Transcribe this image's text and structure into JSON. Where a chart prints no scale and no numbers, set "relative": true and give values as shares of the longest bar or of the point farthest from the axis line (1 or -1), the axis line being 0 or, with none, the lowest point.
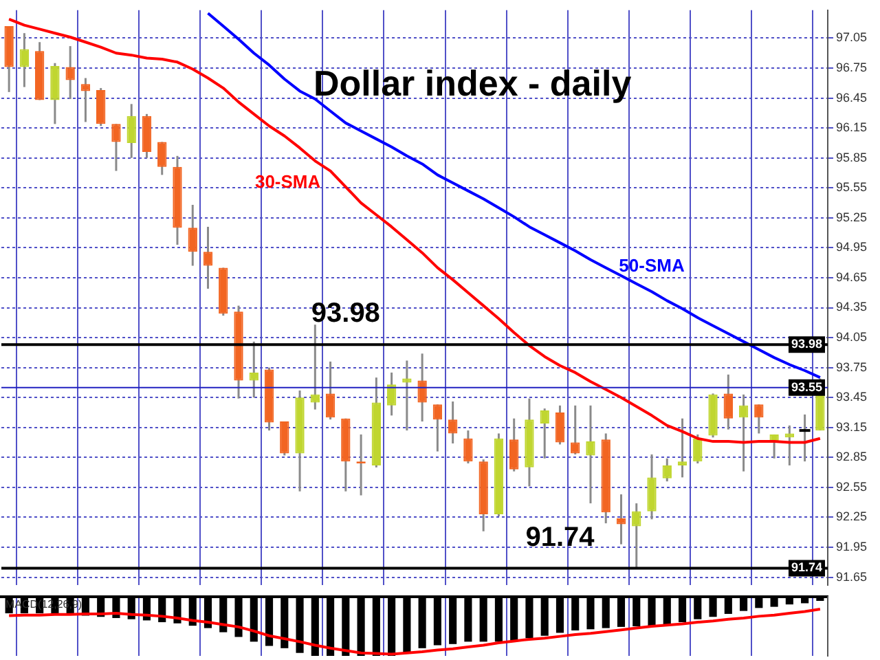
{
  "chart_data": [
    {
      "type": "candlestick",
      "title": "Dollar index - daily",
      "categories": [
        null,
        null,
        null,
        null,
        null,
        null,
        null,
        null,
        null,
        null,
        null,
        null,
        null,
        null,
        null,
        null,
        null,
        null,
        null,
        null,
        null,
        null,
        null,
        null,
        null,
        null,
        null,
        null,
        null,
        null,
        null,
        null,
        null,
        null,
        null,
        null,
        null,
        null,
        null,
        null,
        null,
        null,
        null,
        null,
        null,
        null,
        null,
        null,
        null,
        null,
        null,
        null,
        null,
        null
      ],
      "ohlc": [
        [
          97.17,
          97.17,
          96.51,
          96.76
        ],
        [
          96.76,
          97.1,
          96.56,
          96.94
        ],
        [
          96.92,
          97.01,
          96.43,
          96.43
        ],
        [
          96.43,
          96.8,
          96.19,
          96.77
        ],
        [
          96.76,
          96.97,
          96.44,
          96.63
        ],
        [
          96.59,
          96.65,
          96.21,
          96.52
        ],
        [
          96.53,
          96.55,
          96.17,
          96.19
        ],
        [
          96.19,
          96.19,
          95.72,
          96.01
        ],
        [
          96.0,
          96.39,
          95.85,
          96.27
        ],
        [
          96.27,
          96.29,
          95.85,
          95.91
        ],
        [
          96.01,
          96.01,
          95.68,
          95.76
        ],
        [
          95.76,
          95.87,
          94.98,
          95.15
        ],
        [
          95.15,
          95.38,
          94.77,
          94.91
        ],
        [
          94.91,
          95.16,
          94.54,
          94.77
        ],
        [
          94.75,
          94.75,
          94.27,
          94.29
        ],
        [
          94.31,
          94.37,
          93.44,
          93.62
        ],
        [
          93.62,
          94.01,
          93.45,
          93.7
        ],
        [
          93.73,
          93.75,
          93.12,
          93.2
        ],
        [
          93.21,
          93.21,
          92.87,
          92.89
        ],
        [
          92.89,
          93.52,
          92.51,
          93.45
        ],
        [
          93.4,
          94.18,
          93.33,
          93.48
        ],
        [
          93.49,
          93.81,
          93.23,
          93.25
        ],
        [
          93.24,
          93.24,
          92.51,
          92.81
        ],
        [
          92.81,
          93.08,
          92.47,
          92.79
        ],
        [
          92.77,
          93.65,
          92.75,
          93.4
        ],
        [
          93.37,
          93.7,
          93.27,
          93.58
        ],
        [
          93.6,
          93.82,
          93.12,
          93.64
        ],
        [
          93.62,
          93.89,
          93.21,
          93.4
        ],
        [
          93.38,
          93.38,
          92.91,
          93.23
        ],
        [
          93.23,
          93.41,
          92.99,
          93.09
        ],
        [
          93.04,
          93.12,
          92.79,
          92.81
        ],
        [
          92.81,
          92.83,
          92.11,
          92.28
        ],
        [
          92.28,
          93.09,
          92.26,
          93.04
        ],
        [
          93.03,
          93.24,
          92.71,
          92.73
        ],
        [
          92.75,
          93.44,
          92.56,
          93.23
        ],
        [
          93.19,
          93.34,
          92.84,
          93.32
        ],
        [
          93.3,
          93.37,
          92.98,
          93.0
        ],
        [
          93.0,
          93.37,
          92.88,
          92.89
        ],
        [
          92.87,
          93.37,
          92.39,
          93.01
        ],
        [
          93.03,
          93.09,
          92.19,
          92.3
        ],
        [
          92.24,
          92.48,
          91.98,
          92.18
        ],
        [
          92.16,
          92.39,
          91.74,
          92.31
        ],
        [
          92.31,
          92.88,
          92.23,
          92.65
        ],
        [
          92.64,
          92.84,
          92.61,
          92.77
        ],
        [
          92.77,
          93.24,
          92.65,
          92.81
        ],
        [
          92.81,
          93.08,
          92.79,
          93.04
        ],
        [
          93.07,
          93.49,
          93.05,
          93.48
        ],
        [
          93.49,
          93.68,
          93.13,
          93.24
        ],
        [
          93.25,
          93.48,
          92.71,
          93.37
        ],
        [
          93.38,
          93.38,
          93.09,
          93.25
        ],
        [
          93.01,
          93.08,
          92.84,
          93.08
        ],
        [
          93.05,
          93.17,
          92.77,
          93.09
        ],
        [
          93.12,
          93.28,
          92.81,
          93.12
        ],
        [
          93.12,
          93.64,
          93.12,
          93.55
        ]
      ],
      "colors": [
        "#f26522",
        "#c0d630",
        "#f26522",
        "#c0d630",
        "#f26522",
        "#f26522",
        "#f26522",
        "#f26522",
        "#c0d630",
        "#f26522",
        "#f26522",
        "#f26522",
        "#f26522",
        "#f26522",
        "#f26522",
        "#f26522",
        "#c0d630",
        "#f26522",
        "#f26522",
        "#c0d630",
        "#c0d630",
        "#f26522",
        "#f26522",
        "#f26522",
        "#c0d630",
        "#c0d630",
        "#c0d630",
        "#f26522",
        "#f26522",
        "#f26522",
        "#f26522",
        "#f26522",
        "#c0d630",
        "#f26522",
        "#c0d630",
        "#c0d630",
        "#f26522",
        "#f26522",
        "#c0d630",
        "#f26522",
        "#f26522",
        "#c0d630",
        "#c0d630",
        "#c0d630",
        "#c0d630",
        "#c0d630",
        "#c0d630",
        "#f26522",
        "#c0d630",
        "#f26522",
        "#c0d630",
        "#c0d630",
        "#000000",
        "#c0d630"
      ],
      "series": [
        {
          "type": "line",
          "name": "30-SMA",
          "color": "#ff0000",
          "values": [
            97.24,
            97.18,
            97.14,
            97.1,
            97.06,
            97.01,
            96.96,
            96.9,
            96.88,
            96.85,
            96.84,
            96.81,
            96.74,
            96.65,
            96.55,
            96.41,
            96.29,
            96.17,
            96.07,
            95.95,
            95.82,
            95.72,
            95.56,
            95.4,
            95.28,
            95.16,
            95.03,
            94.9,
            94.75,
            94.63,
            94.5,
            94.37,
            94.24,
            94.1,
            93.97,
            93.86,
            93.77,
            93.7,
            93.61,
            93.53,
            93.45,
            93.36,
            93.27,
            93.17,
            93.11,
            93.04,
            93.01,
            93.01,
            93.0,
            93.01,
            93.01,
            93.0,
            93.0,
            93.04
          ]
        },
        {
          "type": "line",
          "name": "50-SMA",
          "color": "#0000ff",
          "values": [
            null,
            null,
            null,
            null,
            null,
            null,
            null,
            null,
            null,
            null,
            null,
            null,
            null,
            97.3,
            97.17,
            97.04,
            96.9,
            96.78,
            96.64,
            96.52,
            96.44,
            96.32,
            96.2,
            96.12,
            96.04,
            95.96,
            95.87,
            95.79,
            95.68,
            95.6,
            95.52,
            95.44,
            95.35,
            95.26,
            95.16,
            95.08,
            95.0,
            94.92,
            94.83,
            94.75,
            94.67,
            94.59,
            94.51,
            94.42,
            94.34,
            94.25,
            94.17,
            94.09,
            94.01,
            93.93,
            93.85,
            93.78,
            93.72,
            93.65
          ]
        }
      ],
      "ylim": [
        91.57,
        97.33
      ],
      "yticks": [
        91.65,
        91.95,
        92.25,
        92.55,
        92.85,
        93.15,
        93.45,
        93.75,
        94.05,
        94.35,
        94.65,
        94.95,
        95.25,
        95.55,
        95.85,
        96.15,
        96.45,
        96.75,
        97.05
      ],
      "ref_lines": [
        {
          "axis": "y",
          "value": 93.98,
          "label": "93.98",
          "color": "#000000"
        },
        {
          "axis": "y",
          "value": 93.55,
          "label": "93.55",
          "color": "#2020c0"
        },
        {
          "axis": "y",
          "value": 91.74,
          "label": "91.74",
          "color": "#000000"
        }
      ],
      "annotations": [
        {
          "text": "93.98",
          "y": 93.98
        },
        {
          "text": "91.74",
          "y": 91.74
        }
      ],
      "grid": true,
      "legend": false,
      "marker": "none",
      "line_style": "solid",
      "tick_labels": "y"
    },
    {
      "type": "bar",
      "title": "MACD(12,26,9)",
      "relative": true,
      "categories": [
        null,
        null,
        null,
        null,
        null,
        null,
        null,
        null,
        null,
        null,
        null,
        null,
        null,
        null,
        null,
        null,
        null,
        null,
        null,
        null,
        null,
        null,
        null,
        null,
        null,
        null,
        null,
        null,
        null,
        null,
        null,
        null,
        null,
        null,
        null,
        null,
        null,
        null,
        null,
        null,
        null,
        null,
        null,
        null,
        null,
        null,
        null,
        null,
        null,
        null,
        null,
        null,
        null,
        null
      ],
      "series": [
        {
          "type": "bar",
          "color": "#000000",
          "values": [
            -0.28,
            -0.28,
            -0.28,
            -0.28,
            -0.29,
            -0.32,
            -0.34,
            -0.36,
            -0.38,
            -0.4,
            -0.43,
            -0.45,
            -0.49,
            -0.53,
            -0.6,
            -0.68,
            -0.76,
            -0.83,
            -0.87,
            -0.95,
            -1,
            -1,
            -1,
            -1,
            -1,
            -1,
            -0.95,
            -0.87,
            -0.82,
            -0.8,
            -0.76,
            -0.76,
            -0.76,
            -0.74,
            -0.7,
            -0.66,
            -0.61,
            -0.57,
            -0.55,
            -0.53,
            -0.51,
            -0.5,
            -0.49,
            -0.49,
            -0.43,
            -0.38,
            -0.34,
            -0.29,
            -0.24,
            -0.19,
            -0.17,
            -0.13,
            -0.11,
            -0.07
          ]
        },
        {
          "type": "line",
          "color": "#ff0000",
          "values": [
            -0.32,
            -0.31,
            -0.31,
            -0.3,
            -0.3,
            -0.29,
            -0.29,
            -0.28,
            -0.3,
            -0.31,
            -0.33,
            -0.36,
            -0.4,
            -0.43,
            -0.47,
            -0.51,
            -0.58,
            -0.66,
            -0.71,
            -0.76,
            -0.82,
            -0.87,
            -0.91,
            -0.95,
            -0.96,
            -0.97,
            -0.95,
            -0.93,
            -0.9,
            -0.88,
            -0.85,
            -0.82,
            -0.78,
            -0.75,
            -0.72,
            -0.7,
            -0.67,
            -0.64,
            -0.62,
            -0.59,
            -0.56,
            -0.53,
            -0.5,
            -0.48,
            -0.46,
            -0.43,
            -0.41,
            -0.38,
            -0.36,
            -0.33,
            -0.31,
            -0.28,
            -0.25,
            -0.21
          ]
        }
      ],
      "grid": "x",
      "legend": false,
      "marker": "none",
      "line_style": "solid",
      "tick_labels": false
    }
  ]
}
